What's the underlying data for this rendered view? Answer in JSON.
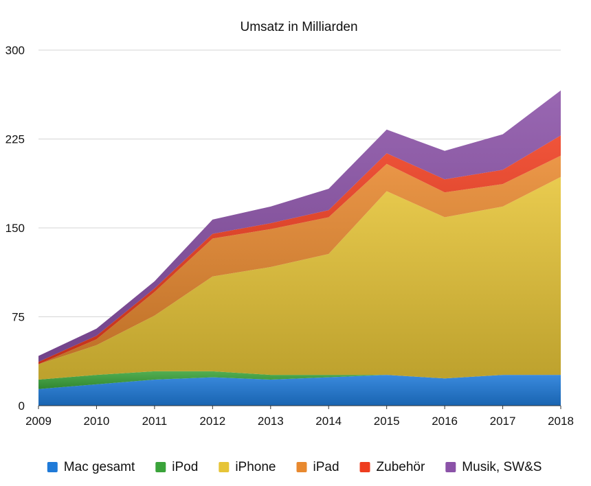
{
  "chart_data": {
    "type": "area",
    "stacked": true,
    "title": "Umsatz in Milliarden",
    "x": [
      "2009",
      "2010",
      "2011",
      "2012",
      "2013",
      "2014",
      "2015",
      "2016",
      "2017",
      "2018"
    ],
    "ylim": [
      0,
      300
    ],
    "yticks": [
      "0",
      "75",
      "150",
      "225",
      "300"
    ],
    "grid": true,
    "legend": "bottom",
    "series": [
      {
        "name": "Mac gesamt",
        "color": "#1f7ad8",
        "values": [
          14,
          18,
          22,
          24,
          22,
          24,
          26,
          23,
          26,
          26
        ]
      },
      {
        "name": "iPod",
        "color": "#3aa33a",
        "values": [
          8,
          8,
          7,
          5,
          4,
          2,
          0,
          0,
          0,
          0
        ]
      },
      {
        "name": "iPhone",
        "color": "#e6c437",
        "values": [
          13,
          25,
          47,
          80,
          91,
          102,
          155,
          136,
          142,
          167
        ]
      },
      {
        "name": "iPad",
        "color": "#e8892f",
        "values": [
          0,
          5,
          20,
          32,
          32,
          31,
          23,
          21,
          19,
          18
        ]
      },
      {
        "name": "Zubehör",
        "color": "#ee3d1f",
        "values": [
          2,
          3,
          3,
          4,
          5,
          6,
          9,
          11,
          12,
          17
        ]
      },
      {
        "name": "Musik, SW&S",
        "color": "#8b52a8",
        "values": [
          5,
          6,
          6,
          12,
          14,
          18,
          20,
          24,
          30,
          38
        ]
      }
    ]
  }
}
